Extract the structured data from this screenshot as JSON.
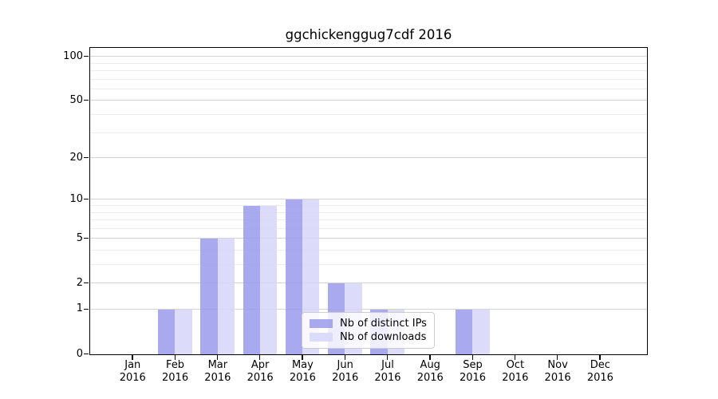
{
  "chart_data": {
    "type": "bar",
    "title": "ggchickenggug7cdf 2016",
    "categories": [
      "Jan",
      "Feb",
      "Mar",
      "Apr",
      "May",
      "Jun",
      "Jul",
      "Aug",
      "Sep",
      "Oct",
      "Nov",
      "Dec"
    ],
    "year_label": "2016",
    "series": [
      {
        "name": "Nb of distinct IPs",
        "color": "#9a9aec",
        "values": [
          0,
          1,
          5,
          9,
          10,
          2,
          1,
          0,
          1,
          0,
          0,
          0
        ]
      },
      {
        "name": "Nb of downloads",
        "color": "#d6d6f9",
        "values": [
          0,
          1,
          5,
          9,
          10,
          2,
          1,
          0,
          1,
          0,
          0,
          0
        ]
      }
    ],
    "bar_alpha": 0.85,
    "y_scale": "log1p",
    "y_axis": {
      "major_ticks": [
        0,
        1,
        2,
        5,
        10,
        20,
        50,
        100
      ],
      "minor_ticks": [
        3,
        4,
        6,
        7,
        8,
        9,
        30,
        40,
        60,
        70,
        80,
        90
      ],
      "max": 112
    },
    "grid": true,
    "legend_position": "lower center"
  },
  "colors": {
    "grid_major": "#d4d4d4",
    "grid_minor": "#ececec",
    "spine": "#000000",
    "legend_border": "#cccccc",
    "legend_bg": "rgba(255,255,255,0.8)"
  }
}
